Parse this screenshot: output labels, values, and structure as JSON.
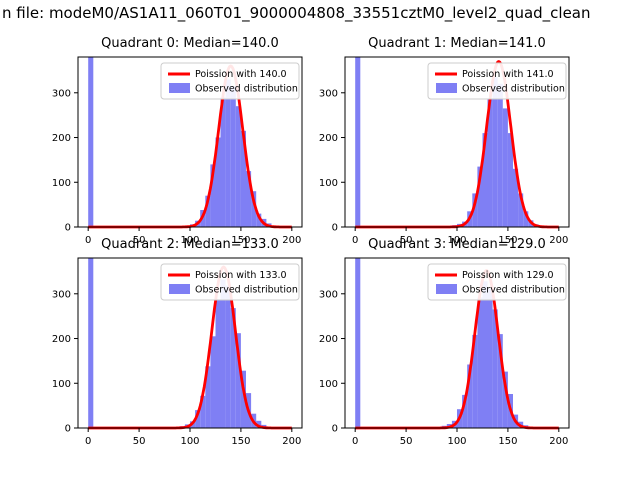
{
  "figure": {
    "title": "n file: modeM0/AS1A11_060T01_9000004808_33551cztM0_level2_quad_clean"
  },
  "colors": {
    "hist": "#7f7ff4",
    "curve": "#ff0000",
    "axis": "#000000",
    "legend_border": "#cccccc",
    "background": "#ffffff"
  },
  "chart_data": [
    {
      "type": "histogram+line",
      "title": "Quadrant 0: Median=140.0",
      "median": 140.0,
      "legend": [
        "Poission with 140.0",
        "Observed distribution"
      ],
      "xlim": [
        -10,
        210
      ],
      "ylim": [
        0,
        380
      ],
      "xticks": [
        0,
        50,
        100,
        150,
        200
      ],
      "yticks": [
        0,
        100,
        200,
        300
      ],
      "bin_start": 0,
      "bin_width": 5,
      "counts": [
        400,
        0,
        0,
        0,
        0,
        0,
        0,
        0,
        0,
        0,
        0,
        0,
        0,
        0,
        0,
        0,
        0,
        0,
        2,
        3,
        6,
        14,
        38,
        70,
        140,
        200,
        290,
        330,
        315,
        270,
        215,
        125,
        80,
        30,
        18,
        8,
        2,
        0,
        0,
        0
      ],
      "curve": {
        "lambda": 140.0,
        "peak": 360
      }
    },
    {
      "type": "histogram+line",
      "title": "Quadrant 1: Median=141.0",
      "median": 141.0,
      "legend": [
        "Poission with 141.0",
        "Observed distribution"
      ],
      "xlim": [
        -10,
        210
      ],
      "ylim": [
        0,
        380
      ],
      "xticks": [
        0,
        50,
        100,
        150,
        200
      ],
      "yticks": [
        0,
        100,
        200,
        300
      ],
      "bin_start": 0,
      "bin_width": 5,
      "counts": [
        400,
        0,
        0,
        0,
        0,
        0,
        0,
        0,
        0,
        0,
        0,
        0,
        0,
        0,
        0,
        0,
        0,
        0,
        1,
        4,
        7,
        12,
        35,
        75,
        135,
        210,
        285,
        335,
        320,
        265,
        210,
        130,
        75,
        35,
        15,
        6,
        3,
        0,
        0,
        0
      ],
      "curve": {
        "lambda": 141.0,
        "peak": 370
      }
    },
    {
      "type": "histogram+line",
      "title": "Quadrant 2: Median=133.0",
      "median": 133.0,
      "legend": [
        "Poission with 133.0",
        "Observed distribution"
      ],
      "xlim": [
        -10,
        210
      ],
      "ylim": [
        0,
        380
      ],
      "xticks": [
        0,
        50,
        100,
        150,
        200
      ],
      "yticks": [
        0,
        100,
        200,
        300
      ],
      "bin_start": 0,
      "bin_width": 5,
      "counts": [
        400,
        0,
        0,
        0,
        0,
        0,
        0,
        0,
        0,
        0,
        0,
        0,
        0,
        0,
        0,
        0,
        1,
        2,
        4,
        8,
        15,
        40,
        72,
        138,
        205,
        288,
        332,
        318,
        268,
        212,
        128,
        78,
        32,
        16,
        7,
        2,
        0,
        0,
        0,
        0
      ],
      "curve": {
        "lambda": 133.0,
        "peak": 360
      }
    },
    {
      "type": "histogram+line",
      "title": "Quadrant 3: Median=129.0",
      "median": 129.0,
      "legend": [
        "Poission with 129.0",
        "Observed distribution"
      ],
      "xlim": [
        -10,
        210
      ],
      "ylim": [
        0,
        380
      ],
      "xticks": [
        0,
        50,
        100,
        150,
        200
      ],
      "yticks": [
        0,
        100,
        200,
        300
      ],
      "bin_start": 0,
      "bin_width": 5,
      "counts": [
        400,
        0,
        0,
        0,
        0,
        0,
        0,
        0,
        0,
        0,
        0,
        0,
        0,
        0,
        0,
        1,
        2,
        5,
        9,
        16,
        42,
        74,
        142,
        208,
        292,
        328,
        312,
        265,
        210,
        126,
        76,
        30,
        14,
        6,
        2,
        0,
        0,
        0,
        0,
        0
      ],
      "curve": {
        "lambda": 129.0,
        "peak": 352
      }
    }
  ]
}
